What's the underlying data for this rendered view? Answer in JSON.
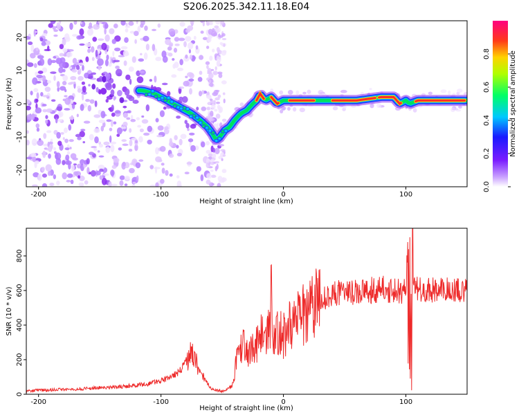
{
  "title": "S206.2025.342.11.18.E04",
  "colors": {
    "snr_line": "#ee2a2a",
    "blob_purple": "#8a2cf0",
    "ridge_core": "#ff2a2a",
    "ridge_band": "#2244ff"
  },
  "chart_data": [
    {
      "type": "heatmap",
      "name": "spectrogram",
      "xlabel": "Height of straight line (km)",
      "ylabel": "Frequency (Hz)",
      "xlim": [
        -210,
        150
      ],
      "ylim": [
        -25,
        25
      ],
      "x_ticks": [
        -200,
        -100,
        0,
        100
      ],
      "x_tick_labels": [
        "-200",
        "-100",
        "0",
        "100"
      ],
      "y_ticks": [
        20,
        10,
        0,
        -10,
        -20
      ],
      "y_tick_labels": [
        "20",
        "10",
        "0",
        "-10",
        "-20"
      ],
      "ridge": {
        "x": [
          -115,
          -105,
          -95,
          -85,
          -75,
          -68,
          -62,
          -58,
          -55,
          -52,
          -48,
          -44,
          -40,
          -35,
          -30,
          -25,
          -22,
          -19,
          -15,
          -10,
          -5,
          0,
          10,
          20,
          40,
          60,
          80,
          90,
          95,
          100,
          103,
          110,
          120,
          135,
          150
        ],
        "y": [
          4,
          3,
          1,
          -1,
          -3,
          -5,
          -7,
          -9,
          -11,
          -10,
          -8,
          -7,
          -5,
          -3,
          -2,
          0,
          1,
          3,
          1,
          2,
          0,
          1,
          1,
          1,
          1,
          1,
          2,
          2,
          0,
          1,
          0,
          1,
          1,
          1,
          1
        ]
      },
      "colorbar": {
        "label": "Normalized spectral amplitude",
        "range": [
          0,
          1
        ],
        "ticks": [
          0.0,
          0.2,
          0.4,
          0.6,
          0.8
        ],
        "tick_labels": [
          "0.0",
          "0.2",
          "0.4",
          "0.6",
          "0.8"
        ],
        "colormap": "rainbow"
      }
    },
    {
      "type": "line",
      "name": "snr",
      "xlabel": "Height of straight line (km)",
      "ylabel": "SNR (10 * v/v)",
      "xlim": [
        -210,
        150
      ],
      "ylim": [
        0,
        960
      ],
      "x_ticks": [
        -200,
        -100,
        0,
        100
      ],
      "x_tick_labels": [
        "-200",
        "-100",
        "0",
        "100"
      ],
      "y_ticks": [
        0,
        200,
        400,
        600,
        800
      ],
      "y_tick_labels": [
        "0",
        "200",
        "400",
        "600",
        "800"
      ],
      "series": [
        {
          "name": "SNR",
          "x": [
            -210,
            -190,
            -170,
            -150,
            -130,
            -110,
            -100,
            -92,
            -85,
            -80,
            -76,
            -72,
            -68,
            -64,
            -60,
            -55,
            -50,
            -45,
            -42,
            -40,
            -38,
            -36,
            -33,
            -30,
            -28,
            -25,
            -22,
            -20,
            -18,
            -15,
            -12,
            -10,
            -8,
            -5,
            -2,
            0,
            3,
            6,
            10,
            15,
            20,
            25,
            30,
            35,
            40,
            50,
            60,
            70,
            80,
            90,
            95,
            100,
            102,
            104,
            106,
            110,
            120,
            130,
            140,
            150
          ],
          "y": [
            20,
            25,
            30,
            38,
            45,
            60,
            80,
            100,
            130,
            180,
            230,
            200,
            120,
            80,
            40,
            20,
            20,
            30,
            50,
            100,
            200,
            260,
            280,
            220,
            300,
            250,
            300,
            280,
            340,
            320,
            380,
            420,
            300,
            350,
            380,
            340,
            380,
            390,
            420,
            450,
            480,
            520,
            550,
            560,
            580,
            590,
            595,
            600,
            610,
            600,
            590,
            600,
            900,
            300,
            650,
            600,
            600,
            610,
            600,
            610
          ]
        }
      ]
    }
  ]
}
